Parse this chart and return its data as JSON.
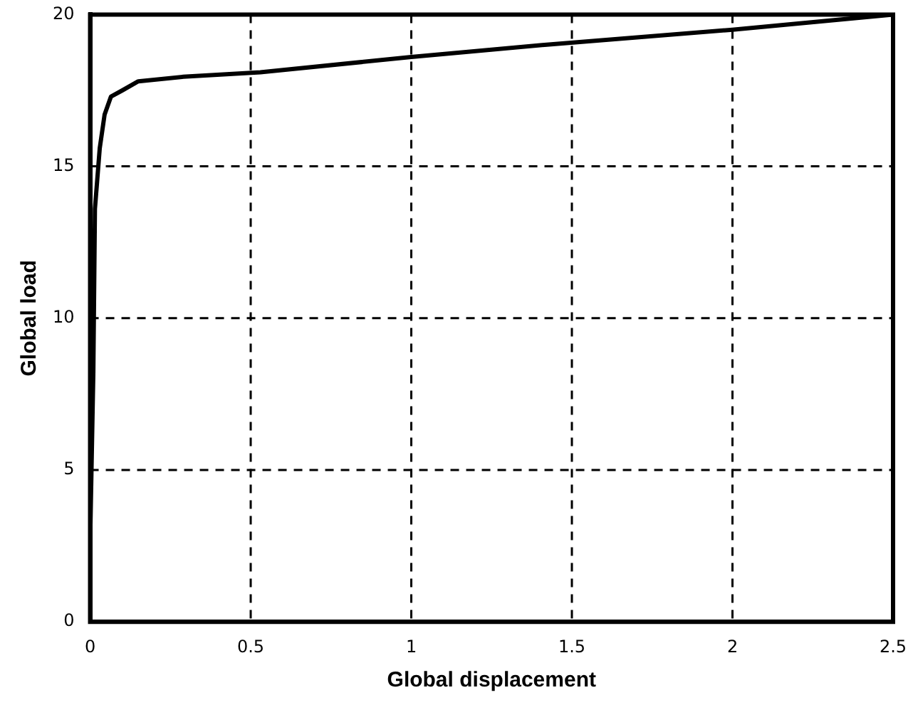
{
  "chart_data": {
    "type": "line",
    "xlabel": "Global displacement",
    "ylabel": "Global load",
    "xlim": [
      0,
      2.5
    ],
    "ylim": [
      0,
      20
    ],
    "xticks": [
      0,
      0.5,
      1,
      1.5,
      2,
      2.5
    ],
    "yticks": [
      0,
      5,
      10,
      15,
      20
    ],
    "grid": true,
    "legend": false,
    "marker": "none",
    "line_style": "solid",
    "series": [
      {
        "color": "#000000",
        "x": [
          0,
          0,
          0.01,
          0.015,
          0.03,
          0.045,
          0.065,
          0.1,
          0.15,
          0.29,
          0.53,
          1,
          1.415,
          2,
          2.5
        ],
        "values": [
          0.3,
          2.6,
          8.2,
          13.6,
          15.6,
          16.7,
          17.3,
          17.5,
          17.8,
          17.95,
          18.1,
          18.6,
          19.0,
          19.5,
          20
        ]
      }
    ]
  }
}
